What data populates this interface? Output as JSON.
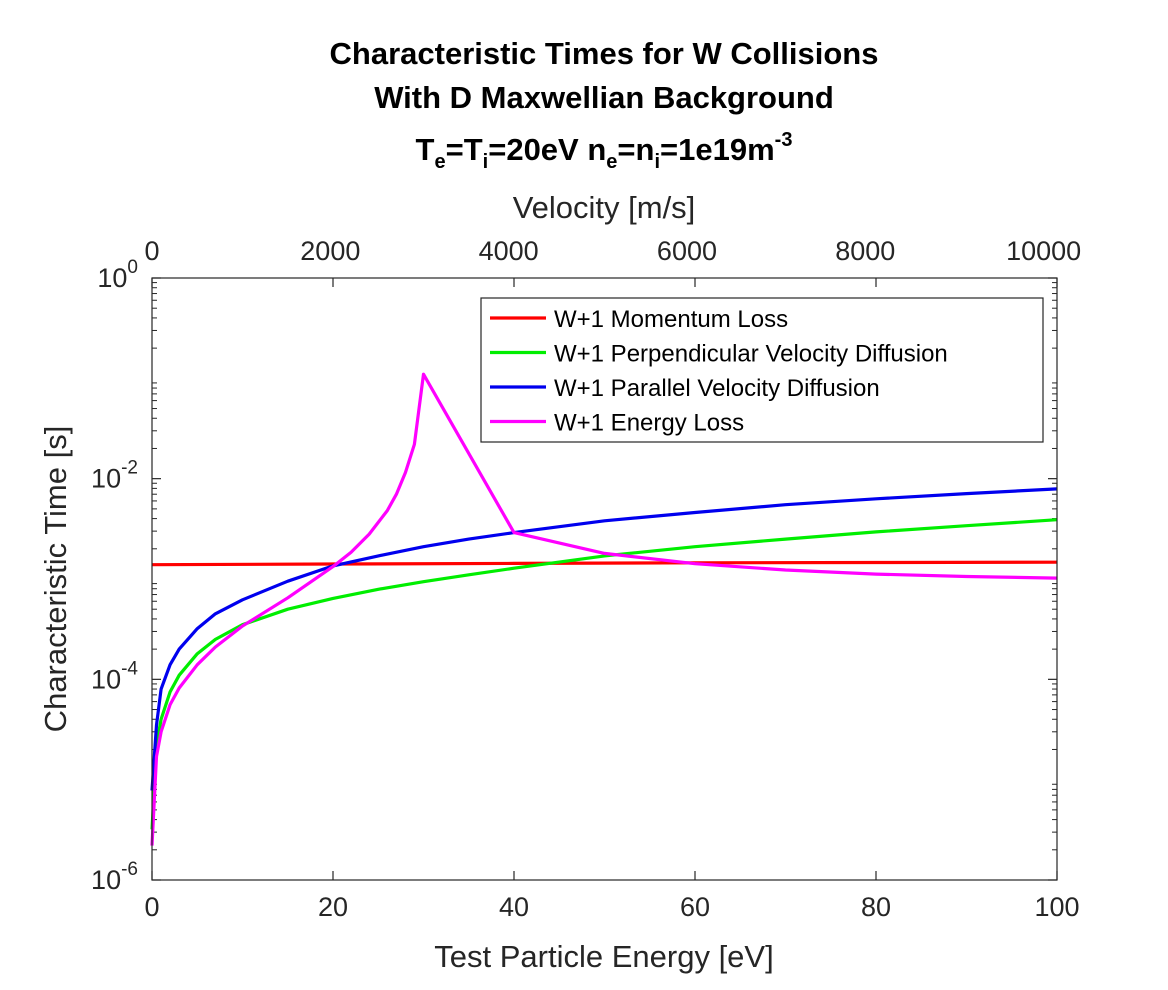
{
  "chart_data": {
    "type": "line",
    "title": {
      "line1": "Characteristic Times for W Collisions",
      "line2": "With D Maxwellian Background",
      "line3": {
        "T": "T",
        "e": "e",
        "eq1": "=T",
        "i": "i",
        "val1": "=20eV n",
        "e2": "e",
        "eq2": "=n",
        "i2": "i",
        "val2": "=1e19m",
        "exp": "-3"
      }
    },
    "xlabel": "Test Particle Energy [eV]",
    "ylabel": "Characteristic Time [s]",
    "x2label": "Velocity [m/s]",
    "xlim": [
      0,
      100
    ],
    "ylim": [
      1e-06,
      1
    ],
    "yscale": "log",
    "x2lim": [
      0,
      10150
    ],
    "xticks": [
      {
        "v": 0,
        "label": "0"
      },
      {
        "v": 20,
        "label": "20"
      },
      {
        "v": 40,
        "label": "40"
      },
      {
        "v": 60,
        "label": "60"
      },
      {
        "v": 80,
        "label": "80"
      },
      {
        "v": 100,
        "label": "100"
      }
    ],
    "x2ticks": [
      {
        "v": 0,
        "label": "0"
      },
      {
        "v": 2000,
        "label": "2000"
      },
      {
        "v": 4000,
        "label": "4000"
      },
      {
        "v": 6000,
        "label": "6000"
      },
      {
        "v": 8000,
        "label": "8000"
      },
      {
        "v": 10000,
        "label": "10000"
      }
    ],
    "yticks": [
      {
        "v": 1e-06,
        "base": "10",
        "exp": "-6"
      },
      {
        "v": 0.0001,
        "base": "10",
        "exp": "-4"
      },
      {
        "v": 0.01,
        "base": "10",
        "exp": "-2"
      },
      {
        "v": 1,
        "base": "10",
        "exp": "0"
      }
    ],
    "grid": false,
    "legend_position": "top-right",
    "series": [
      {
        "name": "W+1 Momentum Loss",
        "color": "#ff0000",
        "x": [
          0,
          20,
          40,
          60,
          80,
          100
        ],
        "y": [
          0.00139,
          0.00141,
          0.00143,
          0.00145,
          0.00146,
          0.00147
        ]
      },
      {
        "name": "W+1 Perpendicular Velocity Diffusion",
        "color": "#00ee00",
        "x": [
          0,
          0.5,
          1,
          2,
          3,
          5,
          7,
          10,
          15,
          20,
          25,
          30,
          35,
          40,
          50,
          60,
          70,
          80,
          90,
          100
        ],
        "y": [
          3.2e-06,
          2.2e-05,
          4e-05,
          7.5e-05,
          0.00011,
          0.00018,
          0.00025,
          0.00035,
          0.0005,
          0.00064,
          0.00079,
          0.00094,
          0.0011,
          0.00128,
          0.0017,
          0.0021,
          0.0025,
          0.00295,
          0.0034,
          0.0039
        ]
      },
      {
        "name": "W+1 Parallel Velocity Diffusion",
        "color": "#0000ee",
        "x": [
          0,
          0.5,
          1,
          2,
          3,
          5,
          7,
          10,
          15,
          20,
          25,
          30,
          35,
          40,
          50,
          60,
          70,
          80,
          90,
          100
        ],
        "y": [
          7.8e-06,
          3.5e-05,
          8e-05,
          0.00014,
          0.0002,
          0.00032,
          0.00045,
          0.00062,
          0.00095,
          0.00135,
          0.0017,
          0.0021,
          0.0025,
          0.0029,
          0.0038,
          0.0046,
          0.0055,
          0.0063,
          0.0071,
          0.0079
        ]
      },
      {
        "name": "W+1 Energy Loss",
        "color": "#ff00ff",
        "x": [
          0,
          0.5,
          1,
          2,
          3,
          5,
          7,
          10,
          15,
          20,
          22,
          24,
          26,
          27,
          28,
          29,
          30,
          40,
          50,
          60,
          70,
          80,
          90,
          100
        ],
        "y": [
          2.2e-06,
          1.7e-05,
          3e-05,
          5.6e-05,
          8.2e-05,
          0.00014,
          0.00021,
          0.00034,
          0.00065,
          0.00133,
          0.00185,
          0.0028,
          0.0048,
          0.007,
          0.0115,
          0.022,
          0.11,
          0.0029,
          0.0018,
          0.00142,
          0.00123,
          0.00112,
          0.00106,
          0.00102
        ]
      }
    ]
  }
}
